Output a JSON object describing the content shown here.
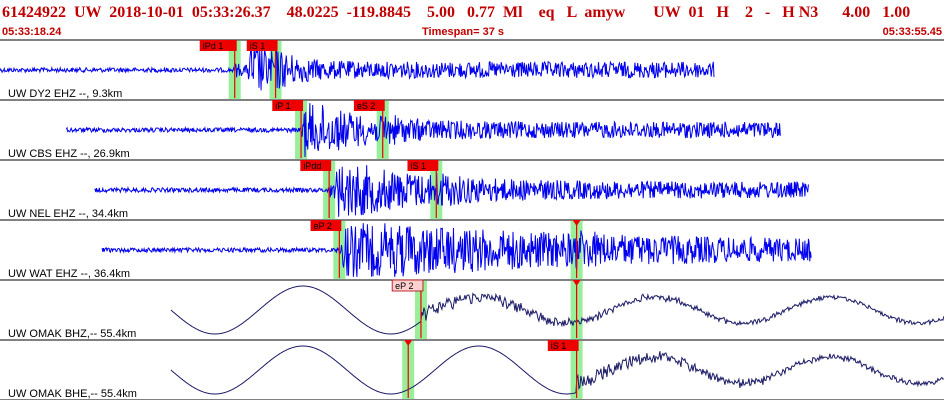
{
  "header": {
    "title": "61424922  UW  2018-10-01  05:33:26.37    48.0225  -119.8845    5.00   0.77  Ml    eq   L  amyw       UW  01   H    2   -   H N3      4.00   1.00",
    "start_time": "05:33:18.24",
    "timespan": "Timespan=  37 s",
    "end_time": "05:33:55.45"
  },
  "colors": {
    "high_freq_trace": "#0000ee",
    "low_freq_trace": "#1a1a66",
    "pick_box": "#ee0000",
    "pick_box_light": "#ffd0d0",
    "pick_band": "#99ee99",
    "title_text": "#c00000"
  },
  "chart_data": {
    "type": "line",
    "time_range_s": [
      0,
      37
    ],
    "traces": [
      {
        "label": "UW DY2 EHZ --, 9.3km",
        "style": "high",
        "start": 0.0,
        "end": 28.0,
        "onset": 9.7,
        "decay": 5,
        "picks": [
          {
            "text": "iPd 1",
            "t": 9.2,
            "box": "red"
          },
          {
            "text": "iS 1",
            "t": 10.8,
            "box": "red"
          }
        ]
      },
      {
        "label": "UW CBS EHZ --, 26.9km",
        "style": "high",
        "start": 2.6,
        "end": 30.6,
        "onset": 11.8,
        "decay": 9,
        "picks": [
          {
            "text": "iP 1",
            "t": 11.8,
            "box": "red"
          },
          {
            "text": "eS 2",
            "t": 15.0,
            "box": "red"
          }
        ]
      },
      {
        "label": "UW NEL EHZ --, 34.4km",
        "style": "high",
        "start": 3.7,
        "end": 31.7,
        "onset": 13.1,
        "decay": 14,
        "picks": [
          {
            "text": "iPdd",
            "t": 12.9,
            "box": "red"
          },
          {
            "text": "iS 1",
            "t": 17.1,
            "box": "red"
          }
        ]
      },
      {
        "label": "UW WAT EHZ --, 36.4km",
        "style": "high",
        "start": 4.0,
        "end": 31.8,
        "onset": 13.4,
        "decay": 40,
        "picks": [
          {
            "text": "eP 2",
            "t": 13.3,
            "box": "red"
          },
          {
            "text": "",
            "t": 22.6,
            "box": "none"
          }
        ]
      },
      {
        "label": "UW OMAK BHZ,-- 55.4km",
        "style": "low",
        "start": 6.7,
        "end": 37.0,
        "onset": 16.5,
        "decay": 30,
        "picks": [
          {
            "text": "eP 2",
            "t": 16.5,
            "box": "light"
          },
          {
            "text": "",
            "t": 22.6,
            "box": "none"
          }
        ]
      },
      {
        "label": "UW OMAK BHE,-- 55.4km",
        "style": "low",
        "start": 6.7,
        "end": 37.0,
        "onset": 22.6,
        "decay": 30,
        "picks": [
          {
            "text": "",
            "t": 16.0,
            "box": "none"
          },
          {
            "text": "iS 1",
            "t": 22.6,
            "box": "red"
          }
        ]
      }
    ]
  }
}
